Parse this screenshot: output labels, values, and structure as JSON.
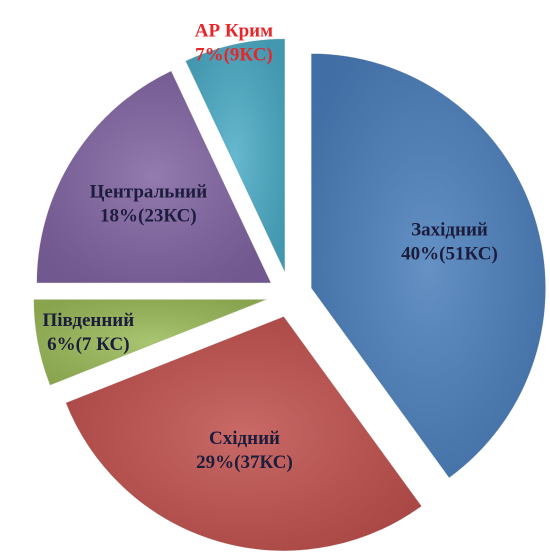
{
  "chart_data": {
    "type": "pie",
    "categories": [
      "Західний",
      "Східний",
      "Південний",
      "Центральний",
      "АР Крим"
    ],
    "values": [
      40,
      29,
      6,
      18,
      7
    ],
    "value_labels": [
      "40%(51КС)",
      "29%(37КС)",
      "6%(7 КС)",
      "18%(23КС)",
      "7%(9КС)"
    ],
    "colors": [
      "#4a7ebb",
      "#c0504d",
      "#9bbb59",
      "#8064a2",
      "#4bacc6"
    ],
    "label_colors": [
      "#1c1c3c",
      "#1c1c3c",
      "#1c1c3c",
      "#1c1c3c",
      "#e8262a"
    ]
  }
}
